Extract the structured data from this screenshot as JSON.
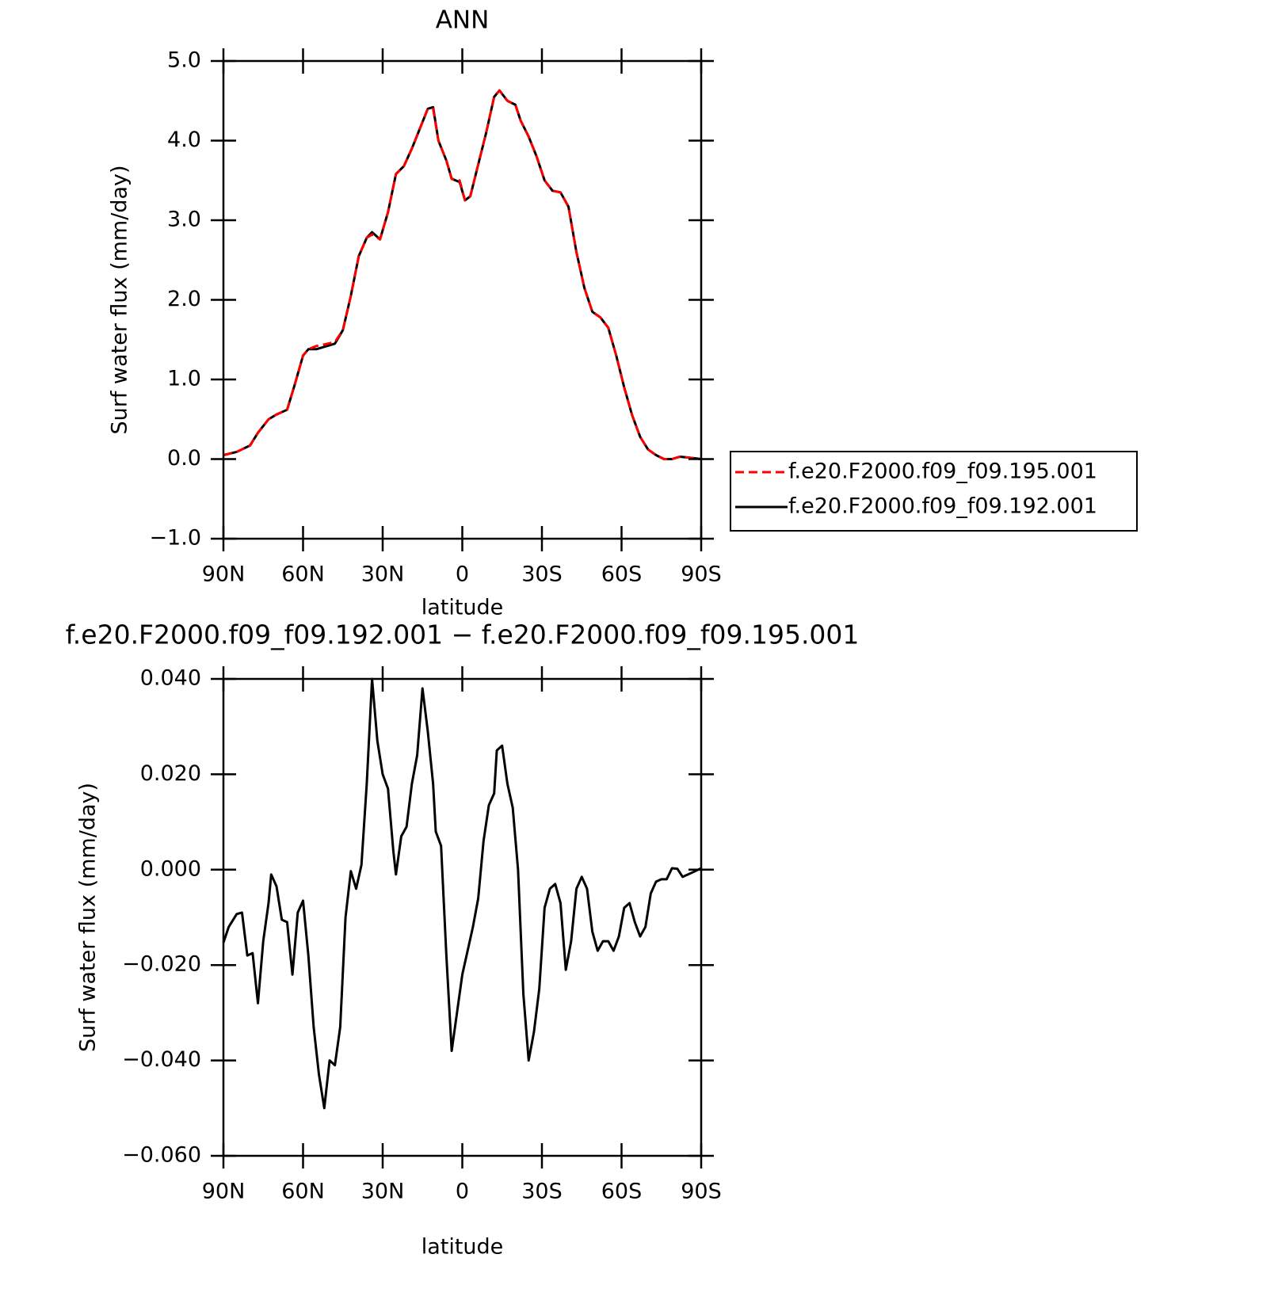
{
  "chart_data": [
    {
      "type": "line",
      "title": "ANN",
      "xlabel": "latitude",
      "ylabel": "Surf water flux (mm/day)",
      "xlim": [
        90,
        -90
      ],
      "ylim": [
        -1,
        5
      ],
      "xticks": [
        {
          "value": 90,
          "label": "90N"
        },
        {
          "value": 60,
          "label": "60N"
        },
        {
          "value": 30,
          "label": "30N"
        },
        0,
        {
          "value": -30,
          "label": "30S"
        },
        {
          "value": -60,
          "label": "60S"
        },
        {
          "value": -90,
          "label": "90S"
        }
      ],
      "yticks": [
        {
          "value": -1,
          "label": "−1.0"
        },
        {
          "value": 0,
          "label": "0.0"
        },
        {
          "value": 1,
          "label": "1.0"
        },
        {
          "value": 2,
          "label": "2.0"
        },
        {
          "value": 3,
          "label": "3.0"
        },
        {
          "value": 4,
          "label": "4.0"
        },
        {
          "value": 5,
          "label": "5.0"
        }
      ],
      "legend": "outside-right",
      "x": [
        90,
        85,
        80,
        77,
        73,
        70,
        66,
        63,
        60,
        58,
        55,
        52,
        48,
        45,
        42,
        39,
        36,
        34,
        31,
        28,
        25,
        22,
        19,
        16,
        13,
        11,
        9,
        6,
        4,
        1,
        -1,
        -3,
        -6,
        -9,
        -12,
        -14,
        -17,
        -20,
        -22,
        -25,
        -28,
        -31,
        -34,
        -37,
        -40,
        -43,
        -46,
        -49,
        -52,
        -55,
        -58,
        -61,
        -64,
        -67,
        -70,
        -73,
        -76,
        -79,
        -82,
        -85,
        -90
      ],
      "series": [
        {
          "name": "f.e20.F2000.f09_f09.195.001",
          "color": "#ff0000",
          "dashed": true,
          "values": [
            0.05,
            0.09,
            0.17,
            0.33,
            0.5,
            0.56,
            0.62,
            0.95,
            1.3,
            1.38,
            1.42,
            1.44,
            1.47,
            1.62,
            2.05,
            2.55,
            2.78,
            2.82,
            2.76,
            3.1,
            3.58,
            3.68,
            3.9,
            4.15,
            4.4,
            4.4,
            4.0,
            3.75,
            3.52,
            3.5,
            3.25,
            3.3,
            3.7,
            4.1,
            4.55,
            4.63,
            4.5,
            4.45,
            4.25,
            4.05,
            3.8,
            3.5,
            3.37,
            3.35,
            3.17,
            2.6,
            2.15,
            1.85,
            1.78,
            1.65,
            1.3,
            0.9,
            0.55,
            0.28,
            0.12,
            0.05,
            0.0,
            0.0,
            0.03,
            0.02,
            0.0
          ]
        },
        {
          "name": "f.e20.F2000.f09_f09.192.001",
          "color": "#000000",
          "dashed": false,
          "values": [
            0.05,
            0.09,
            0.17,
            0.33,
            0.5,
            0.56,
            0.62,
            0.95,
            1.3,
            1.38,
            1.38,
            1.41,
            1.45,
            1.62,
            2.05,
            2.55,
            2.78,
            2.85,
            2.76,
            3.1,
            3.58,
            3.68,
            3.9,
            4.15,
            4.4,
            4.42,
            4.0,
            3.75,
            3.52,
            3.48,
            3.25,
            3.3,
            3.7,
            4.1,
            4.55,
            4.63,
            4.5,
            4.45,
            4.25,
            4.05,
            3.8,
            3.5,
            3.37,
            3.35,
            3.17,
            2.6,
            2.15,
            1.85,
            1.78,
            1.65,
            1.3,
            0.9,
            0.55,
            0.28,
            0.12,
            0.05,
            0.0,
            0.0,
            0.03,
            0.02,
            0.0
          ]
        }
      ]
    },
    {
      "type": "line",
      "title": "f.e20.F2000.f09_f09.192.001 − f.e20.F2000.f09_f09.195.001",
      "xlabel": "latitude",
      "ylabel": "Surf water flux (mm/day)",
      "xlim": [
        90,
        -90
      ],
      "ylim": [
        -0.06,
        0.04
      ],
      "xticks": [
        {
          "value": 90,
          "label": "90N"
        },
        {
          "value": 60,
          "label": "60N"
        },
        {
          "value": 30,
          "label": "30N"
        },
        0,
        {
          "value": -30,
          "label": "30S"
        },
        {
          "value": -60,
          "label": "60S"
        },
        {
          "value": -90,
          "label": "90S"
        }
      ],
      "yticks": [
        {
          "value": -0.06,
          "label": "−0.060"
        },
        {
          "value": -0.04,
          "label": "−0.040"
        },
        {
          "value": -0.02,
          "label": "−0.020"
        },
        {
          "value": 0,
          "label": "0.000"
        },
        {
          "value": 0.02,
          "label": "0.020"
        },
        {
          "value": 0.04,
          "label": "0.040"
        }
      ],
      "x": [
        90,
        88,
        85,
        83,
        81,
        79,
        77,
        75,
        73,
        72,
        70,
        68,
        66,
        64,
        62,
        60,
        58,
        56,
        54,
        52,
        50,
        48,
        46,
        44,
        42,
        40,
        38,
        36,
        34,
        32,
        30,
        28,
        26,
        25,
        23,
        21,
        19,
        17,
        15,
        13,
        11,
        10,
        8,
        6,
        4,
        2,
        0,
        -2,
        -4,
        -6,
        -8,
        -10,
        -12,
        -13,
        -15,
        -17,
        -19,
        -21,
        -23,
        -25,
        -27,
        -29,
        -31,
        -33,
        -35,
        -37,
        -39,
        -41,
        -43,
        -45,
        -47,
        -49,
        -51,
        -53,
        -55,
        -57,
        -59,
        -61,
        -63,
        -65,
        -67,
        -69,
        -71,
        -73,
        -75,
        -77,
        -79,
        -81,
        -83,
        -85,
        -87,
        -90
      ],
      "series": [
        {
          "color": "#000000",
          "dashed": false,
          "values": [
            -0.0153,
            -0.012,
            -0.0093,
            -0.009,
            -0.018,
            -0.0175,
            -0.028,
            -0.015,
            -0.007,
            -0.001,
            -0.0035,
            -0.0105,
            -0.011,
            -0.022,
            -0.009,
            -0.0065,
            -0.018,
            -0.033,
            -0.043,
            -0.05,
            -0.04,
            -0.041,
            -0.033,
            -0.01,
            -0.0003,
            -0.004,
            0.001,
            0.018,
            0.04,
            0.027,
            0.02,
            0.017,
            0.004,
            -0.001,
            0.007,
            0.009,
            0.018,
            0.024,
            0.038,
            0.029,
            0.018,
            0.008,
            0.005,
            -0.018,
            -0.038,
            -0.03,
            -0.022,
            -0.017,
            -0.012,
            -0.006,
            0.006,
            0.0135,
            0.016,
            0.025,
            0.026,
            0.018,
            0.013,
            0.0,
            -0.026,
            -0.04,
            -0.034,
            -0.025,
            -0.008,
            -0.004,
            -0.003,
            -0.007,
            -0.021,
            -0.015,
            -0.004,
            -0.0015,
            -0.004,
            -0.013,
            -0.017,
            -0.015,
            -0.015,
            -0.017,
            -0.014,
            -0.008,
            -0.007,
            -0.011,
            -0.014,
            -0.012,
            -0.005,
            -0.0025,
            -0.002,
            -0.002,
            0.0003,
            0.0002,
            -0.0015,
            -0.001,
            -0.0005,
            0.0003
          ]
        }
      ]
    }
  ]
}
